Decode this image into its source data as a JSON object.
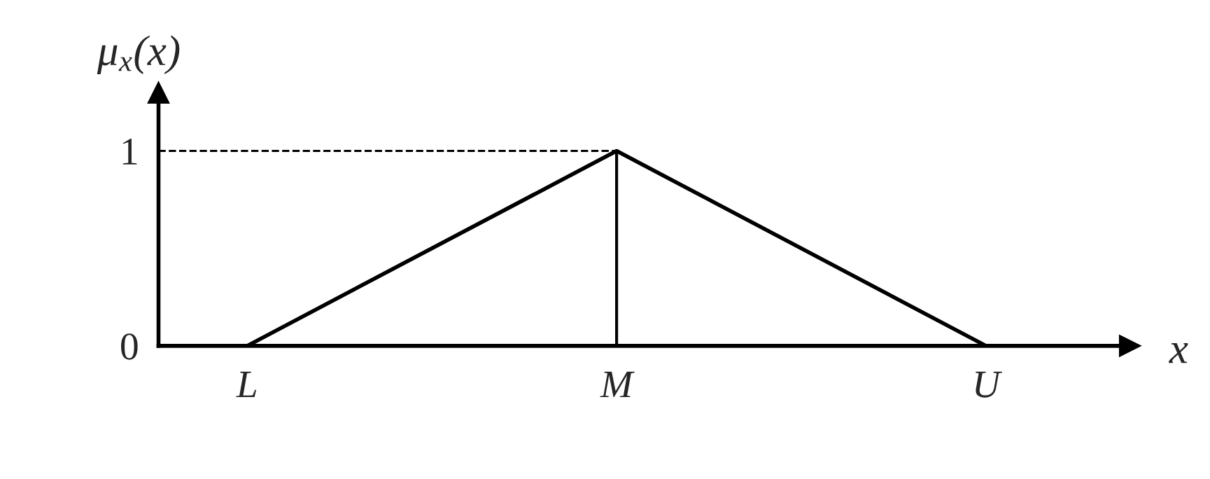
{
  "chart_data": {
    "type": "line",
    "xlabel": "x",
    "ylabel": "μ$_{x}$(x)",
    "categories": [
      "L",
      "M",
      "U"
    ],
    "series": [
      {
        "color": "#000000",
        "values": [
          0,
          1,
          0
        ]
      }
    ],
    "ylim": [
      0,
      1.3
    ],
    "yticks": [
      0,
      1
    ],
    "ref_lines": [
      {
        "axis": "y",
        "value": 1,
        "line_style": "dashed",
        "color": "#000000"
      },
      {
        "axis": "x",
        "value": "M",
        "line_style": "solid",
        "color": "#000000"
      }
    ],
    "grid": false,
    "legend": false,
    "marker": "none",
    "line_style": "solid"
  }
}
